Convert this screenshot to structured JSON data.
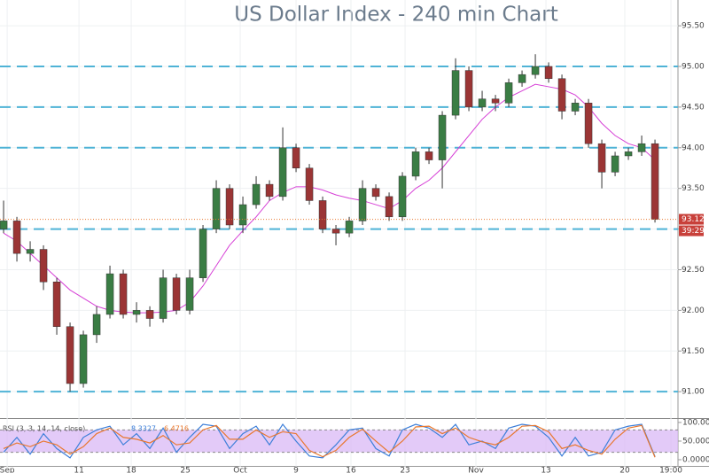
{
  "chart_data": {
    "type": "candlestick",
    "title": "US Dollar Index - 240 min Chart",
    "up_color": "#3a7d44",
    "down_color": "#9b3535",
    "open": [
      93.0,
      93.1,
      92.7,
      92.75,
      92.35,
      91.8,
      91.1,
      91.7,
      91.95,
      92.45,
      91.95,
      92.0,
      91.9,
      92.4,
      92.0,
      92.4,
      93.0,
      93.5,
      93.05,
      93.3,
      93.55,
      93.4,
      94.0,
      93.75,
      93.35,
      93.0,
      92.95,
      93.1,
      93.5,
      93.4,
      93.15,
      93.65,
      93.95,
      93.85,
      94.4,
      94.95,
      94.5,
      94.6,
      94.55,
      94.8,
      94.9,
      95.0,
      94.85,
      94.45,
      94.55,
      94.05,
      93.7,
      93.9,
      93.95,
      94.05
    ],
    "high": [
      93.35,
      93.15,
      92.85,
      92.8,
      92.4,
      91.85,
      91.75,
      92.05,
      92.55,
      92.5,
      92.1,
      92.05,
      92.5,
      92.45,
      92.5,
      93.05,
      93.6,
      93.55,
      93.4,
      93.65,
      93.6,
      94.25,
      94.05,
      93.8,
      93.4,
      93.05,
      93.15,
      93.6,
      93.55,
      93.45,
      93.7,
      94.0,
      94.0,
      94.45,
      95.1,
      95.0,
      94.7,
      94.65,
      94.85,
      94.95,
      95.15,
      95.05,
      94.9,
      94.6,
      94.6,
      94.1,
      93.95,
      94.0,
      94.15,
      94.1
    ],
    "low": [
      92.95,
      92.6,
      92.6,
      92.25,
      91.7,
      91.0,
      91.05,
      91.6,
      91.9,
      91.9,
      91.85,
      91.8,
      91.85,
      91.95,
      91.95,
      92.35,
      92.95,
      93.0,
      92.95,
      93.25,
      93.35,
      93.35,
      93.7,
      93.3,
      92.95,
      92.8,
      92.9,
      93.05,
      93.35,
      93.1,
      93.1,
      93.6,
      93.8,
      93.5,
      94.35,
      94.45,
      94.45,
      94.45,
      94.5,
      94.75,
      94.85,
      94.8,
      94.35,
      94.4,
      94.0,
      93.5,
      93.65,
      93.85,
      93.9,
      93.08
    ],
    "close": [
      93.1,
      92.7,
      92.75,
      92.35,
      91.8,
      91.1,
      91.7,
      91.95,
      92.45,
      91.95,
      92.0,
      91.9,
      92.4,
      92.0,
      92.4,
      93.0,
      93.5,
      93.05,
      93.3,
      93.55,
      93.4,
      94.0,
      93.75,
      93.35,
      93.0,
      92.95,
      93.1,
      93.5,
      93.4,
      93.15,
      93.65,
      93.95,
      93.85,
      94.4,
      94.95,
      94.5,
      94.6,
      94.55,
      94.8,
      94.9,
      95.0,
      94.85,
      94.45,
      94.55,
      94.05,
      93.7,
      93.9,
      93.95,
      94.05,
      93.12
    ],
    "ma": {
      "color": "#d63fd6",
      "values": [
        92.95,
        92.85,
        92.7,
        92.55,
        92.4,
        92.25,
        92.15,
        92.05,
        92.0,
        91.98,
        91.97,
        91.97,
        91.98,
        92.0,
        92.1,
        92.3,
        92.55,
        92.8,
        92.98,
        93.15,
        93.35,
        93.45,
        93.52,
        93.52,
        93.48,
        93.42,
        93.38,
        93.35,
        93.3,
        93.25,
        93.35,
        93.5,
        93.6,
        93.75,
        93.95,
        94.15,
        94.35,
        94.5,
        94.62,
        94.7,
        94.78,
        94.75,
        94.72,
        94.65,
        94.5,
        94.3,
        94.15,
        94.05,
        94.0,
        93.85
      ]
    },
    "levels": [
      95.0,
      94.5,
      94.0,
      93.0,
      91.0
    ],
    "level_color": "#4fb3d6",
    "countdown": "39:29",
    "xlim": [
      -0.27,
      50.73
    ],
    "xticks": [
      {
        "value": 0.27,
        "label": "Sep"
      },
      {
        "value": 5.67,
        "label": "11"
      },
      {
        "value": 9.6,
        "label": "18"
      },
      {
        "value": 13.67,
        "label": "25"
      },
      {
        "value": 17.8,
        "label": "Oct"
      },
      {
        "value": 22,
        "label": "9"
      },
      {
        "value": 26.13,
        "label": "16"
      },
      {
        "value": 30.2,
        "label": "23"
      },
      {
        "value": 35.53,
        "label": "Nov"
      },
      {
        "value": 40.8,
        "label": "13"
      },
      {
        "value": 46.73,
        "label": "20"
      },
      {
        "value": 50.2,
        "label": "19:00"
      }
    ],
    "ylim": [
      90.675,
      95.817
    ],
    "yticks": [
      {
        "value": 91.0,
        "label": "91.00"
      },
      {
        "value": 91.5,
        "label": "91.50"
      },
      {
        "value": 92.0,
        "label": "92.00"
      },
      {
        "value": 92.5,
        "label": "92.50"
      },
      {
        "value": 93.0,
        "label": "93.00"
      },
      {
        "value": 93.5,
        "label": "93.50"
      },
      {
        "value": 94.0,
        "label": "94.00"
      },
      {
        "value": 94.5,
        "label": "94.50"
      },
      {
        "value": 95.0,
        "label": "95.00"
      },
      {
        "value": 95.5,
        "label": "95.50"
      }
    ],
    "grid": true,
    "rsi": {
      "label": "RSI (3, 3, 14, 14, close)",
      "ylim": [
        -19,
        107
      ],
      "band": [
        20,
        80
      ],
      "band_color": "#d9b8f5",
      "yticks": [
        {
          "value": 0,
          "label": "0.0000"
        },
        {
          "value": 50,
          "label": "50.0000"
        },
        {
          "value": 100,
          "label": "100.0000"
        }
      ],
      "series": [
        {
          "color": "#3d7fd9",
          "values": [
            20,
            60,
            15,
            70,
            30,
            5,
            60,
            80,
            90,
            40,
            70,
            30,
            85,
            20,
            60,
            95,
            90,
            30,
            70,
            90,
            40,
            95,
            50,
            10,
            5,
            40,
            80,
            85,
            30,
            10,
            80,
            95,
            85,
            60,
            95,
            40,
            50,
            30,
            85,
            95,
            90,
            60,
            10,
            60,
            10,
            20,
            80,
            90,
            95,
            8.3327
          ]
        },
        {
          "color": "#e8772e",
          "values": [
            30,
            45,
            35,
            50,
            40,
            15,
            35,
            70,
            85,
            60,
            55,
            45,
            65,
            40,
            45,
            80,
            92,
            55,
            55,
            80,
            60,
            75,
            70,
            25,
            8,
            25,
            60,
            82,
            50,
            20,
            50,
            88,
            90,
            70,
            85,
            60,
            48,
            40,
            60,
            90,
            92,
            75,
            30,
            40,
            25,
            15,
            55,
            85,
            92,
            6.4716
          ]
        }
      ]
    }
  }
}
